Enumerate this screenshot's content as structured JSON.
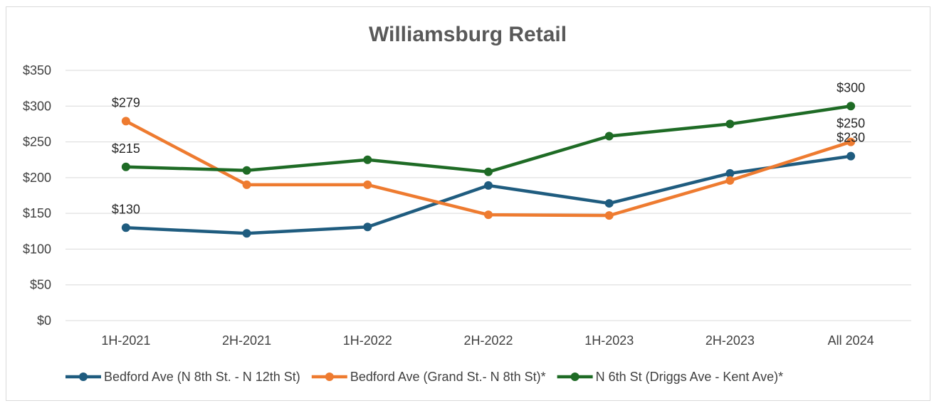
{
  "chart_data": {
    "type": "line",
    "title": "Williamsburg Retail",
    "xlabel": "",
    "ylabel": "",
    "categories": [
      "1H-2021",
      "2H-2021",
      "1H-2022",
      "2H-2022",
      "1H-2023",
      "2H-2023",
      "All 2024"
    ],
    "ylim": [
      0,
      350
    ],
    "yticks": [
      0,
      50,
      100,
      150,
      200,
      250,
      300,
      350
    ],
    "ytick_labels": [
      "$0",
      "$50",
      "$100",
      "$150",
      "$200",
      "$250",
      "$300",
      "$350"
    ],
    "grid": true,
    "legend_position": "bottom",
    "series": [
      {
        "name": "Bedford Ave (N 8th St. - N 12th St)",
        "color": "#1f5c7f",
        "values": [
          130,
          122,
          131,
          189,
          164,
          206,
          230
        ],
        "labels": [
          {
            "index": 0,
            "text": "$130"
          },
          {
            "index": 6,
            "text": "$230"
          }
        ]
      },
      {
        "name": "Bedford Ave (Grand St.- N 8th St)*",
        "color": "#ee7b30",
        "values": [
          279,
          190,
          190,
          148,
          147,
          196,
          250
        ],
        "labels": [
          {
            "index": 0,
            "text": "$279"
          },
          {
            "index": 6,
            "text": "$250"
          }
        ]
      },
      {
        "name": "N 6th St (Driggs Ave - Kent Ave)*",
        "color": "#1e6b25",
        "values": [
          215,
          210,
          225,
          208,
          258,
          275,
          300
        ],
        "labels": [
          {
            "index": 0,
            "text": "$215"
          },
          {
            "index": 6,
            "text": "$300"
          }
        ]
      }
    ]
  }
}
